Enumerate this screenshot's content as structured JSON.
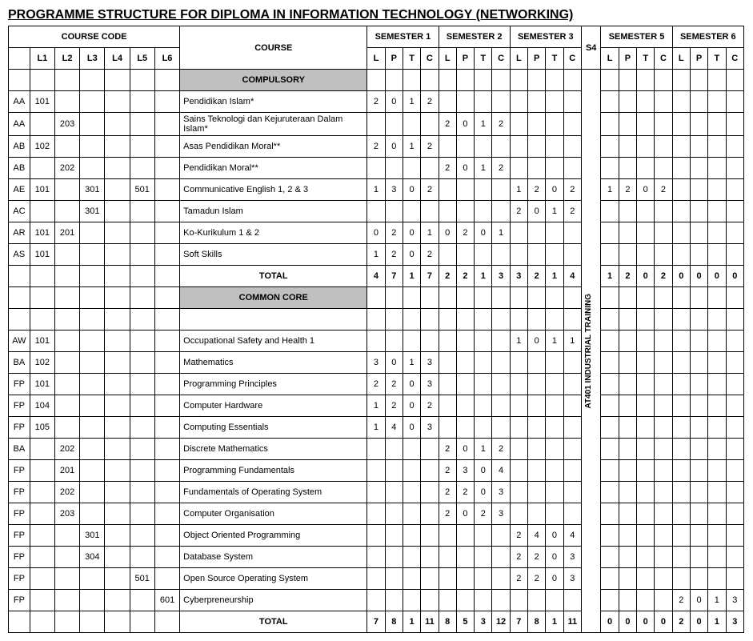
{
  "title": "PROGRAMME STRUCTURE FOR DIPLOMA IN INFORMATION TECHNOLOGY (NETWORKING)",
  "headers": {
    "course_code": "COURSE CODE",
    "course": "COURSE",
    "semesters": [
      "SEMESTER 1",
      "SEMESTER 2",
      "SEMESTER 3",
      "S4",
      "SEMESTER 5",
      "SEMESTER 6"
    ],
    "levels": [
      "L1",
      "L2",
      "L3",
      "L4",
      "L5",
      "L6"
    ],
    "lptc": [
      "L",
      "P",
      "T",
      "C"
    ]
  },
  "s4_text": "AT401 INDUSTRIAL TRAINING",
  "sections": [
    {
      "name": "COMPULSORY",
      "rows": [
        {
          "code": [
            "AA",
            "101",
            "",
            "",
            "",
            "",
            ""
          ],
          "course": "Pendidikan Islam*",
          "s1": [
            "2",
            "0",
            "1",
            "2"
          ],
          "s2": [
            "",
            "",
            "",
            ""
          ],
          "s3": [
            "",
            "",
            "",
            ""
          ],
          "s5": [
            "",
            "",
            "",
            ""
          ],
          "s6": [
            "",
            "",
            "",
            ""
          ]
        },
        {
          "code": [
            "AA",
            "",
            "203",
            "",
            "",
            "",
            ""
          ],
          "course": "Sains Teknologi dan Kejuruteraan Dalam Islam*",
          "s1": [
            "",
            "",
            "",
            ""
          ],
          "s2": [
            "2",
            "0",
            "1",
            "2"
          ],
          "s3": [
            "",
            "",
            "",
            ""
          ],
          "s5": [
            "",
            "",
            "",
            ""
          ],
          "s6": [
            "",
            "",
            "",
            ""
          ]
        },
        {
          "code": [
            "AB",
            "102",
            "",
            "",
            "",
            "",
            ""
          ],
          "course": "Asas Pendidikan Moral**",
          "s1": [
            "2",
            "0",
            "1",
            "2"
          ],
          "s2": [
            "",
            "",
            "",
            ""
          ],
          "s3": [
            "",
            "",
            "",
            ""
          ],
          "s5": [
            "",
            "",
            "",
            ""
          ],
          "s6": [
            "",
            "",
            "",
            ""
          ]
        },
        {
          "code": [
            "AB",
            "",
            "202",
            "",
            "",
            "",
            ""
          ],
          "course": "Pendidikan Moral**",
          "s1": [
            "",
            "",
            "",
            ""
          ],
          "s2": [
            "2",
            "0",
            "1",
            "2"
          ],
          "s3": [
            "",
            "",
            "",
            ""
          ],
          "s5": [
            "",
            "",
            "",
            ""
          ],
          "s6": [
            "",
            "",
            "",
            ""
          ]
        },
        {
          "code": [
            "AE",
            "101",
            "",
            "301",
            "",
            "501",
            ""
          ],
          "course": "Communicative English 1, 2 & 3",
          "s1": [
            "1",
            "3",
            "0",
            "2"
          ],
          "s2": [
            "",
            "",
            "",
            ""
          ],
          "s3": [
            "1",
            "2",
            "0",
            "2"
          ],
          "s5": [
            "1",
            "2",
            "0",
            "2"
          ],
          "s6": [
            "",
            "",
            "",
            ""
          ]
        },
        {
          "code": [
            "AC",
            "",
            "",
            "301",
            "",
            "",
            ""
          ],
          "course": "Tamadun Islam",
          "s1": [
            "",
            "",
            "",
            ""
          ],
          "s2": [
            "",
            "",
            "",
            ""
          ],
          "s3": [
            "2",
            "0",
            "1",
            "2"
          ],
          "s5": [
            "",
            "",
            "",
            ""
          ],
          "s6": [
            "",
            "",
            "",
            ""
          ]
        },
        {
          "code": [
            "AR",
            "101",
            "201",
            "",
            "",
            "",
            ""
          ],
          "course": "Ko-Kurikulum 1 & 2",
          "s1": [
            "0",
            "2",
            "0",
            "1"
          ],
          "s2": [
            "0",
            "2",
            "0",
            "1"
          ],
          "s3": [
            "",
            "",
            "",
            ""
          ],
          "s5": [
            "",
            "",
            "",
            ""
          ],
          "s6": [
            "",
            "",
            "",
            ""
          ]
        },
        {
          "code": [
            "AS",
            "101",
            "",
            "",
            "",
            "",
            ""
          ],
          "course": "Soft Skills",
          "s1": [
            "1",
            "2",
            "0",
            "2"
          ],
          "s2": [
            "",
            "",
            "",
            ""
          ],
          "s3": [
            "",
            "",
            "",
            ""
          ],
          "s5": [
            "",
            "",
            "",
            ""
          ],
          "s6": [
            "",
            "",
            "",
            ""
          ]
        }
      ],
      "total": {
        "label": "TOTAL",
        "s1": [
          "4",
          "7",
          "1",
          "7"
        ],
        "s2": [
          "2",
          "2",
          "1",
          "3"
        ],
        "s3": [
          "3",
          "2",
          "1",
          "4"
        ],
        "s5": [
          "1",
          "2",
          "0",
          "2"
        ],
        "s6": [
          "0",
          "0",
          "0",
          "0"
        ]
      }
    },
    {
      "name": "COMMON CORE",
      "rows": [
        {
          "code": [
            "AW",
            "101",
            "",
            "",
            "",
            "",
            ""
          ],
          "course": "Occupational Safety and Health 1",
          "s1": [
            "",
            "",
            "",
            ""
          ],
          "s2": [
            "",
            "",
            "",
            ""
          ],
          "s3": [
            "1",
            "0",
            "1",
            "1"
          ],
          "s5": [
            "",
            "",
            "",
            ""
          ],
          "s6": [
            "",
            "",
            "",
            ""
          ]
        },
        {
          "code": [
            "BA",
            "102",
            "",
            "",
            "",
            "",
            ""
          ],
          "course": "Mathematics",
          "s1": [
            "3",
            "0",
            "1",
            "3"
          ],
          "s2": [
            "",
            "",
            "",
            ""
          ],
          "s3": [
            "",
            "",
            "",
            ""
          ],
          "s5": [
            "",
            "",
            "",
            ""
          ],
          "s6": [
            "",
            "",
            "",
            ""
          ]
        },
        {
          "code": [
            "FP",
            "101",
            "",
            "",
            "",
            "",
            ""
          ],
          "course": "Programming Principles",
          "s1": [
            "2",
            "2",
            "0",
            "3"
          ],
          "s2": [
            "",
            "",
            "",
            ""
          ],
          "s3": [
            "",
            "",
            "",
            ""
          ],
          "s5": [
            "",
            "",
            "",
            ""
          ],
          "s6": [
            "",
            "",
            "",
            ""
          ]
        },
        {
          "code": [
            "FP",
            "104",
            "",
            "",
            "",
            "",
            ""
          ],
          "course": "Computer Hardware",
          "s1": [
            "1",
            "2",
            "0",
            "2"
          ],
          "s2": [
            "",
            "",
            "",
            ""
          ],
          "s3": [
            "",
            "",
            "",
            ""
          ],
          "s5": [
            "",
            "",
            "",
            ""
          ],
          "s6": [
            "",
            "",
            "",
            ""
          ]
        },
        {
          "code": [
            "FP",
            "105",
            "",
            "",
            "",
            "",
            ""
          ],
          "course": "Computing Essentials",
          "s1": [
            "1",
            "4",
            "0",
            "3"
          ],
          "s2": [
            "",
            "",
            "",
            ""
          ],
          "s3": [
            "",
            "",
            "",
            ""
          ],
          "s5": [
            "",
            "",
            "",
            ""
          ],
          "s6": [
            "",
            "",
            "",
            ""
          ]
        },
        {
          "code": [
            "BA",
            "",
            "202",
            "",
            "",
            "",
            ""
          ],
          "course": "Discrete Mathematics",
          "s1": [
            "",
            "",
            "",
            ""
          ],
          "s2": [
            "2",
            "0",
            "1",
            "2"
          ],
          "s3": [
            "",
            "",
            "",
            ""
          ],
          "s5": [
            "",
            "",
            "",
            ""
          ],
          "s6": [
            "",
            "",
            "",
            ""
          ]
        },
        {
          "code": [
            "FP",
            "",
            "201",
            "",
            "",
            "",
            ""
          ],
          "course": "Programming Fundamentals",
          "s1": [
            "",
            "",
            "",
            ""
          ],
          "s2": [
            "2",
            "3",
            "0",
            "4"
          ],
          "s3": [
            "",
            "",
            "",
            ""
          ],
          "s5": [
            "",
            "",
            "",
            ""
          ],
          "s6": [
            "",
            "",
            "",
            ""
          ]
        },
        {
          "code": [
            "FP",
            "",
            "202",
            "",
            "",
            "",
            ""
          ],
          "course": "Fundamentals of Operating System",
          "s1": [
            "",
            "",
            "",
            ""
          ],
          "s2": [
            "2",
            "2",
            "0",
            "3"
          ],
          "s3": [
            "",
            "",
            "",
            ""
          ],
          "s5": [
            "",
            "",
            "",
            ""
          ],
          "s6": [
            "",
            "",
            "",
            ""
          ]
        },
        {
          "code": [
            "FP",
            "",
            "203",
            "",
            "",
            "",
            ""
          ],
          "course": "Computer Organisation",
          "s1": [
            "",
            "",
            "",
            ""
          ],
          "s2": [
            "2",
            "0",
            "2",
            "3"
          ],
          "s3": [
            "",
            "",
            "",
            ""
          ],
          "s5": [
            "",
            "",
            "",
            ""
          ],
          "s6": [
            "",
            "",
            "",
            ""
          ]
        },
        {
          "code": [
            "FP",
            "",
            "",
            "301",
            "",
            "",
            ""
          ],
          "course": "Object Oriented Programming",
          "s1": [
            "",
            "",
            "",
            ""
          ],
          "s2": [
            "",
            "",
            "",
            ""
          ],
          "s3": [
            "2",
            "4",
            "0",
            "4"
          ],
          "s5": [
            "",
            "",
            "",
            ""
          ],
          "s6": [
            "",
            "",
            "",
            ""
          ]
        },
        {
          "code": [
            "FP",
            "",
            "",
            "304",
            "",
            "",
            ""
          ],
          "course": "Database System",
          "s1": [
            "",
            "",
            "",
            ""
          ],
          "s2": [
            "",
            "",
            "",
            ""
          ],
          "s3": [
            "2",
            "2",
            "0",
            "3"
          ],
          "s5": [
            "",
            "",
            "",
            ""
          ],
          "s6": [
            "",
            "",
            "",
            ""
          ]
        },
        {
          "code": [
            "FP",
            "",
            "",
            "",
            "",
            "501",
            ""
          ],
          "course": "Open Source Operating System",
          "s1": [
            "",
            "",
            "",
            ""
          ],
          "s2": [
            "",
            "",
            "",
            ""
          ],
          "s3": [
            "2",
            "2",
            "0",
            "3"
          ],
          "s5": [
            "",
            "",
            "",
            ""
          ],
          "s6": [
            "",
            "",
            "",
            ""
          ]
        },
        {
          "code": [
            "FP",
            "",
            "",
            "",
            "",
            "",
            "601"
          ],
          "course": "Cyberpreneurship",
          "s1": [
            "",
            "",
            "",
            ""
          ],
          "s2": [
            "",
            "",
            "",
            ""
          ],
          "s3": [
            "",
            "",
            "",
            ""
          ],
          "s5": [
            "",
            "",
            "",
            ""
          ],
          "s6": [
            "2",
            "0",
            "1",
            "3"
          ]
        }
      ],
      "total": {
        "label": "TOTAL",
        "s1": [
          "7",
          "8",
          "1",
          "11"
        ],
        "s2": [
          "8",
          "5",
          "3",
          "12"
        ],
        "s3": [
          "7",
          "8",
          "1",
          "11"
        ],
        "s5": [
          "0",
          "0",
          "0",
          "0"
        ],
        "s6": [
          "2",
          "0",
          "1",
          "3"
        ]
      }
    }
  ]
}
